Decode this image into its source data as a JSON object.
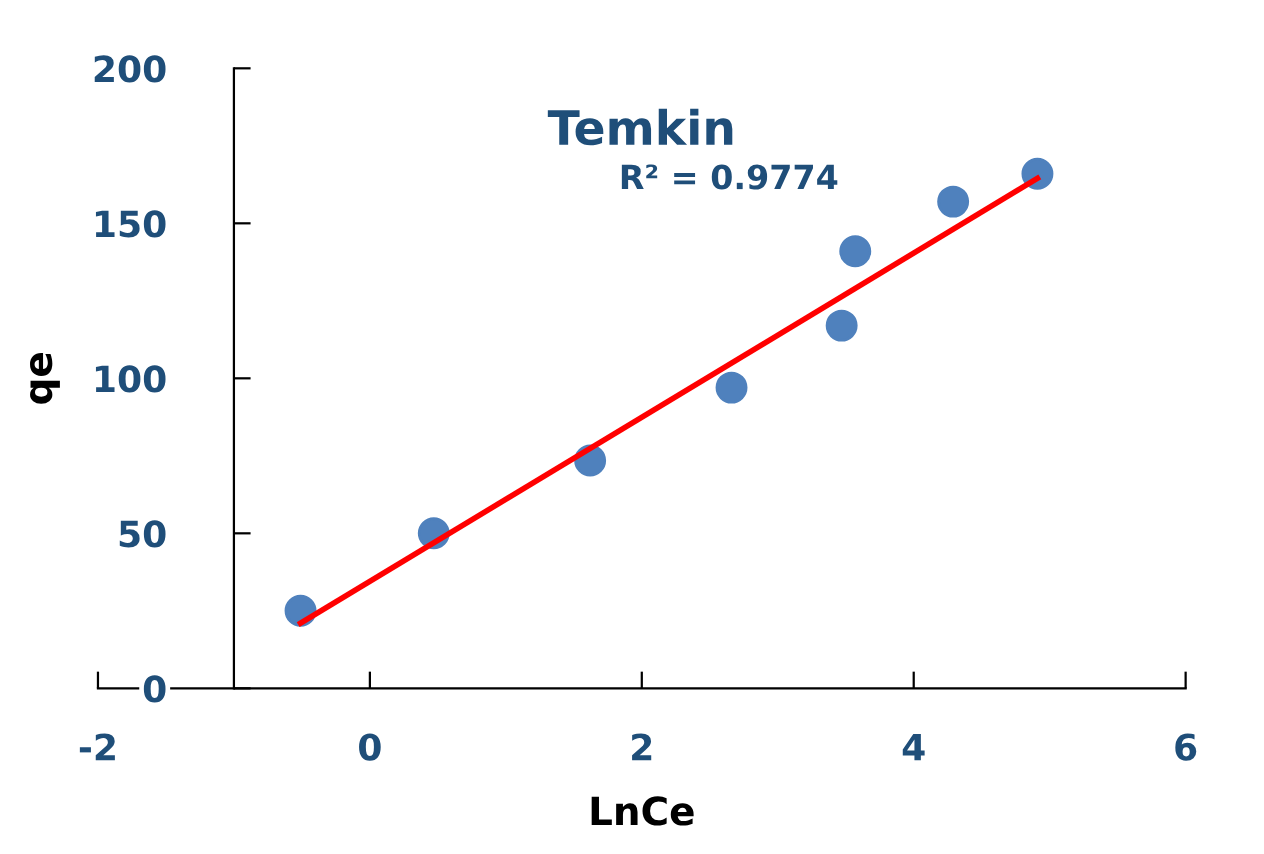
{
  "chart_data": {
    "type": "scatter",
    "title": "Temkin",
    "xlabel": "LnCe",
    "ylabel": "qe",
    "annotations": [
      "R² = 0.9774"
    ],
    "series": [
      {
        "color": "#4f81bd",
        "marker": "circle",
        "x": [
          -0.51,
          0.47,
          1.62,
          2.66,
          3.47,
          3.57,
          4.29,
          4.91
        ],
        "values": [
          25,
          50,
          73.5,
          97,
          117,
          141,
          157,
          166
        ]
      },
      {
        "type": "line",
        "color": "#ff0000",
        "x": [
          -0.51,
          4.91
        ],
        "values": [
          21,
          164.5
        ]
      }
    ],
    "xlim": [
      -2,
      6
    ],
    "ylim": [
      0,
      200
    ],
    "xticks": [
      -2,
      0,
      2,
      4,
      6
    ],
    "yticks": [
      0,
      50,
      100,
      150,
      200
    ],
    "grid": false,
    "legend": false
  }
}
